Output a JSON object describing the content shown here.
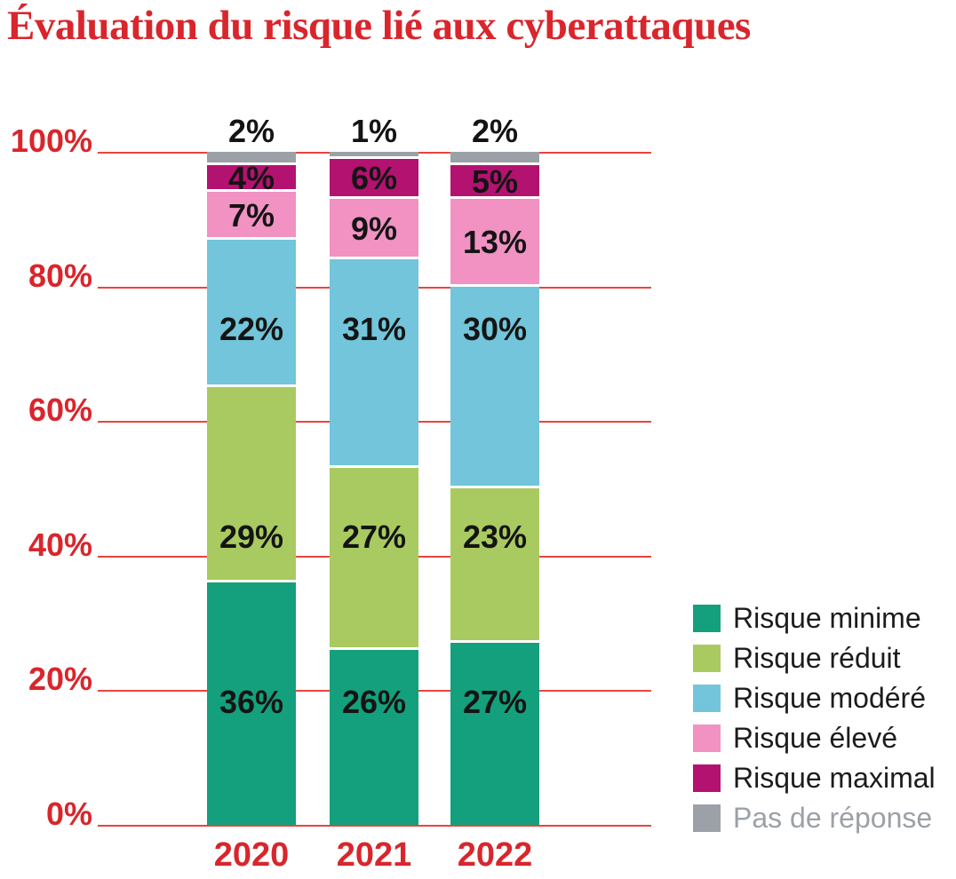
{
  "title": "Évaluation du risque lié aux cyberattaques",
  "title_color": "#d8262c",
  "chart_data": {
    "type": "bar",
    "stacked": true,
    "title": "Évaluation du risque lié aux cyberattaques",
    "categories": [
      "2020",
      "2021",
      "2022"
    ],
    "series": [
      {
        "name": "Risque minime",
        "color": "#14a07c",
        "values": [
          36,
          26,
          27
        ]
      },
      {
        "name": "Risque réduit",
        "color": "#a9ca60",
        "values": [
          29,
          27,
          23
        ]
      },
      {
        "name": "Risque modéré",
        "color": "#72c5da",
        "values": [
          22,
          31,
          30
        ]
      },
      {
        "name": "Risque élevé",
        "color": "#f192c3",
        "values": [
          7,
          9,
          13
        ]
      },
      {
        "name": "Risque maximal",
        "color": "#b31270",
        "values": [
          4,
          6,
          5
        ]
      },
      {
        "name": "Pas de réponse",
        "color": "#9ca1a7",
        "values": [
          2,
          1,
          2
        ]
      }
    ],
    "value_suffix": "%",
    "y_ticks": [
      0,
      20,
      40,
      60,
      80,
      100
    ],
    "y_tick_suffix": "%",
    "ylim": [
      0,
      100
    ],
    "grid": true,
    "gridline_color": "#e8453c",
    "axis_text_color": "#d8262c",
    "value_label_color": "#141414",
    "legend_position": "right-bottom",
    "legend_text_color": "#1c1c1c",
    "legend_muted_text_color": "#9ca1a7",
    "muted_series": "Pas de réponse",
    "top_label_series": "Pas de réponse"
  }
}
